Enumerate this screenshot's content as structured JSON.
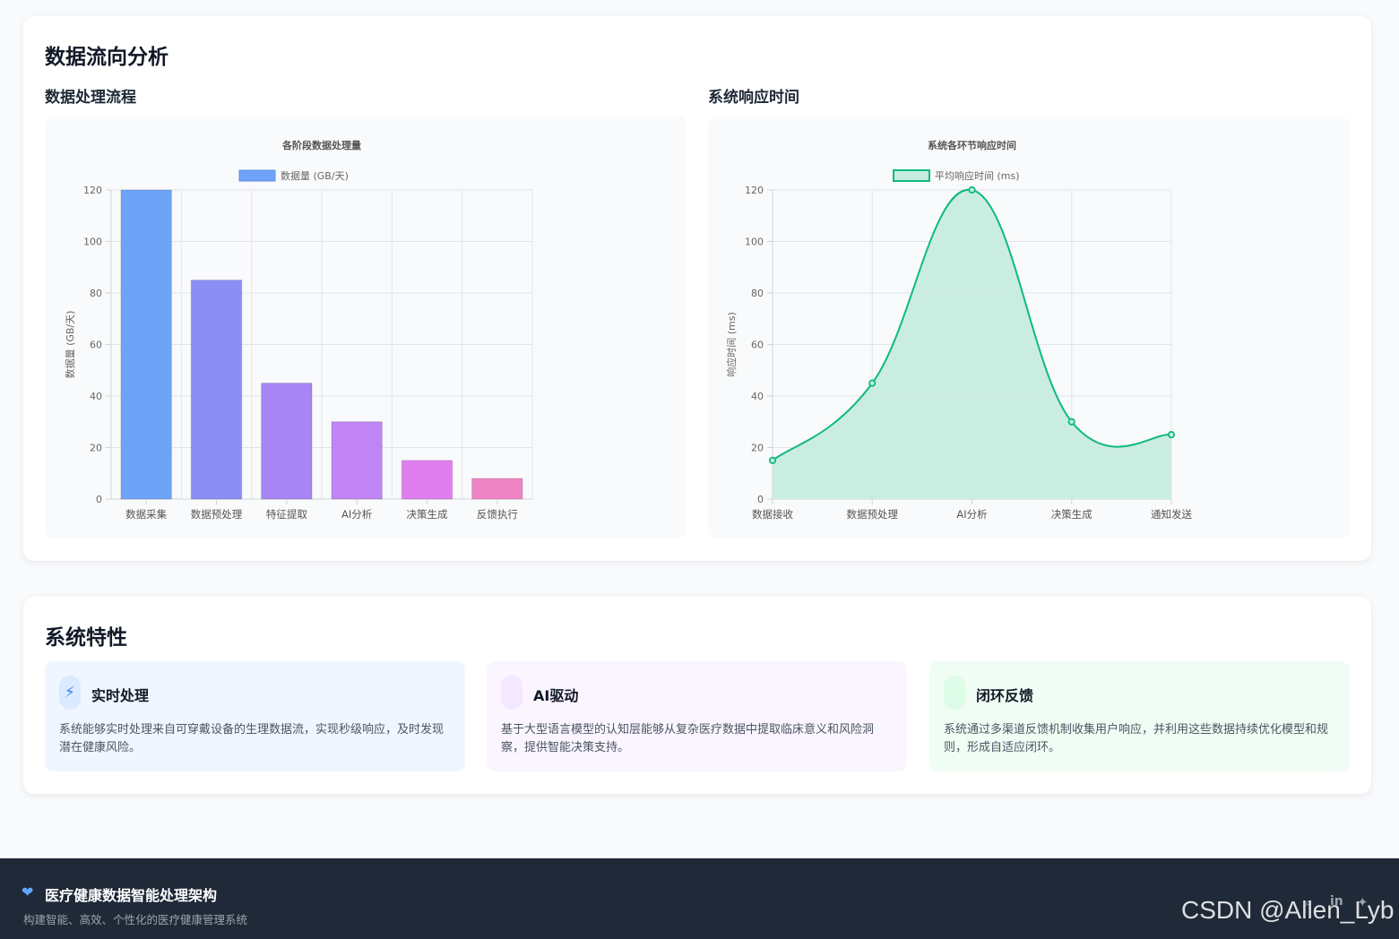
{
  "section1": {
    "title": "数据流向分析",
    "left_heading": "数据处理流程",
    "right_heading": "系统响应时间"
  },
  "chart_data": [
    {
      "type": "bar",
      "title": "各阶段数据处理量",
      "categories": [
        "数据采集",
        "数据预处理",
        "特征提取",
        "AI分析",
        "决策生成",
        "反馈执行"
      ],
      "series": [
        {
          "name": "数据量 (GB/天)",
          "values": [
            120,
            85,
            45,
            30,
            15,
            8
          ]
        }
      ],
      "xlabel": "",
      "ylabel": "数据量 (GB/天)",
      "ylim": [
        0,
        120
      ],
      "yticks": [
        0,
        20,
        40,
        60,
        80,
        100,
        120
      ],
      "grid": true,
      "legend": "top",
      "colors": [
        "#6ea3f8",
        "#8b8ef4",
        "#a686f5",
        "#c184f5",
        "#e07ef0",
        "#ef85c4"
      ]
    },
    {
      "type": "area",
      "title": "系统各环节响应时间",
      "categories": [
        "数据接收",
        "数据预处理",
        "AI分析",
        "决策生成",
        "通知发送"
      ],
      "series": [
        {
          "name": "平均响应时间 (ms)",
          "values": [
            15,
            45,
            120,
            30,
            25
          ]
        }
      ],
      "xlabel": "",
      "ylabel": "响应时间 (ms)",
      "ylim": [
        0,
        120
      ],
      "yticks": [
        0,
        20,
        40,
        60,
        80,
        100,
        120
      ],
      "grid": true,
      "legend": "top",
      "line_color": "#10b981",
      "fill_color": "#c7ecdf"
    }
  ],
  "section2": {
    "title": "系统特性",
    "features": [
      {
        "title": "实时处理",
        "icon": "bolt-icon",
        "glyph": "⚡",
        "desc": "系统能够实时处理来自可穿戴设备的生理数据流，实现秒级响应，及时发现潜在健康风险。",
        "bg": "#eff6ff",
        "icon_bg": "#dbeafe",
        "icon_color": "#3b82f6"
      },
      {
        "title": "AI驱动",
        "icon": "brain-icon",
        "glyph": "",
        "desc": "基于大型语言模型的认知层能够从复杂医疗数据中提取临床意义和风险洞察，提供智能决策支持。",
        "bg": "#faf5ff",
        "icon_bg": "#f3e8ff",
        "icon_color": "#a855f7"
      },
      {
        "title": "闭环反馈",
        "icon": "loop-icon",
        "glyph": "",
        "desc": "系统通过多渠道反馈机制收集用户响应，并利用这些数据持续优化模型和规则，形成自适应闭环。",
        "bg": "#f0fdf4",
        "icon_bg": "#dcfce7",
        "icon_color": "#22c55e"
      }
    ]
  },
  "footer": {
    "heart_glyph": "❤",
    "title": "医疗健康数据智能处理架构",
    "subtitle": "构建智能、高效、个性化的医疗健康管理系统",
    "social": [
      {
        "icon": "github-icon",
        "glyph": "⌕"
      },
      {
        "icon": "linkedin-icon",
        "glyph": "in"
      },
      {
        "icon": "twitter-icon",
        "glyph": "✦"
      }
    ]
  },
  "watermark": "CSDN @Allen_Lyb"
}
